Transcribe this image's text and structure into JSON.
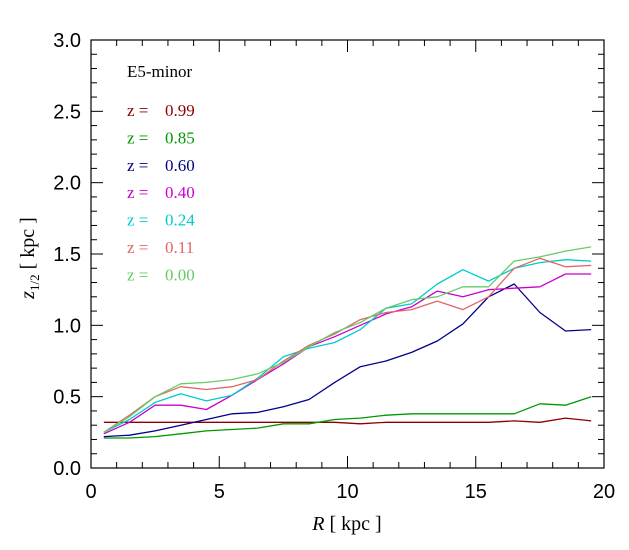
{
  "chart_data": {
    "type": "line",
    "panel_label": "E5-minor",
    "xlabel_italic": "R",
    "xlabel_rest": " [ kpc ]",
    "ylabel_italic": "z",
    "ylabel_sub": "1/2",
    "ylabel_rest": " [ kpc ]",
    "xlim": [
      0,
      20
    ],
    "ylim": [
      0,
      3.0
    ],
    "xticks": [
      0,
      5,
      10,
      15,
      20
    ],
    "xtick_labels": [
      "0",
      "5",
      "10",
      "15",
      "20"
    ],
    "yticks": [
      0.0,
      0.5,
      1.0,
      1.5,
      2.0,
      2.5,
      3.0
    ],
    "ytick_labels": [
      "0.0",
      "0.5",
      "1.0",
      "1.5",
      "2.0",
      "2.5",
      "3.0"
    ],
    "legend_prefix": "z =",
    "x": [
      0.5,
      1.5,
      2.5,
      3.5,
      4.5,
      5.5,
      6.5,
      7.5,
      8.5,
      9.5,
      10.5,
      11.5,
      12.5,
      13.5,
      14.5,
      15.5,
      16.5,
      17.5,
      18.5,
      19.5
    ],
    "series": [
      {
        "name": "0.99",
        "color": "#8b0000",
        "values": [
          0.32,
          0.32,
          0.32,
          0.32,
          0.32,
          0.32,
          0.32,
          0.32,
          0.32,
          0.32,
          0.31,
          0.32,
          0.32,
          0.32,
          0.32,
          0.32,
          0.33,
          0.32,
          0.35,
          0.33
        ]
      },
      {
        "name": "0.85",
        "color": "#009900",
        "values": [
          0.21,
          0.21,
          0.22,
          0.24,
          0.26,
          0.27,
          0.28,
          0.31,
          0.31,
          0.34,
          0.35,
          0.37,
          0.38,
          0.38,
          0.38,
          0.38,
          0.38,
          0.45,
          0.44,
          0.5
        ]
      },
      {
        "name": "0.60",
        "color": "#00008b",
        "values": [
          0.22,
          0.23,
          0.26,
          0.3,
          0.34,
          0.38,
          0.39,
          0.43,
          0.48,
          0.6,
          0.71,
          0.75,
          0.81,
          0.89,
          1.01,
          1.2,
          1.29,
          1.09,
          0.96,
          0.97
        ]
      },
      {
        "name": "0.40",
        "color": "#cc00cc",
        "values": [
          0.24,
          0.32,
          0.44,
          0.44,
          0.41,
          0.51,
          0.62,
          0.73,
          0.85,
          0.92,
          1.0,
          1.08,
          1.13,
          1.24,
          1.2,
          1.25,
          1.26,
          1.27,
          1.36,
          1.36
        ]
      },
      {
        "name": "0.24",
        "color": "#00cccc",
        "values": [
          0.25,
          0.34,
          0.46,
          0.52,
          0.47,
          0.51,
          0.63,
          0.78,
          0.84,
          0.88,
          0.97,
          1.12,
          1.15,
          1.29,
          1.39,
          1.31,
          1.4,
          1.44,
          1.46,
          1.45
        ]
      },
      {
        "name": "0.11",
        "color": "#e06666",
        "values": [
          0.25,
          0.37,
          0.5,
          0.57,
          0.55,
          0.57,
          0.62,
          0.75,
          0.86,
          0.94,
          1.04,
          1.09,
          1.11,
          1.17,
          1.11,
          1.2,
          1.4,
          1.47,
          1.41,
          1.42
        ]
      },
      {
        "name": "0.00",
        "color": "#66cc66",
        "values": [
          0.25,
          0.36,
          0.5,
          0.59,
          0.6,
          0.62,
          0.66,
          0.74,
          0.85,
          0.95,
          1.02,
          1.12,
          1.18,
          1.2,
          1.27,
          1.27,
          1.45,
          1.48,
          1.52,
          1.55
        ]
      }
    ]
  }
}
